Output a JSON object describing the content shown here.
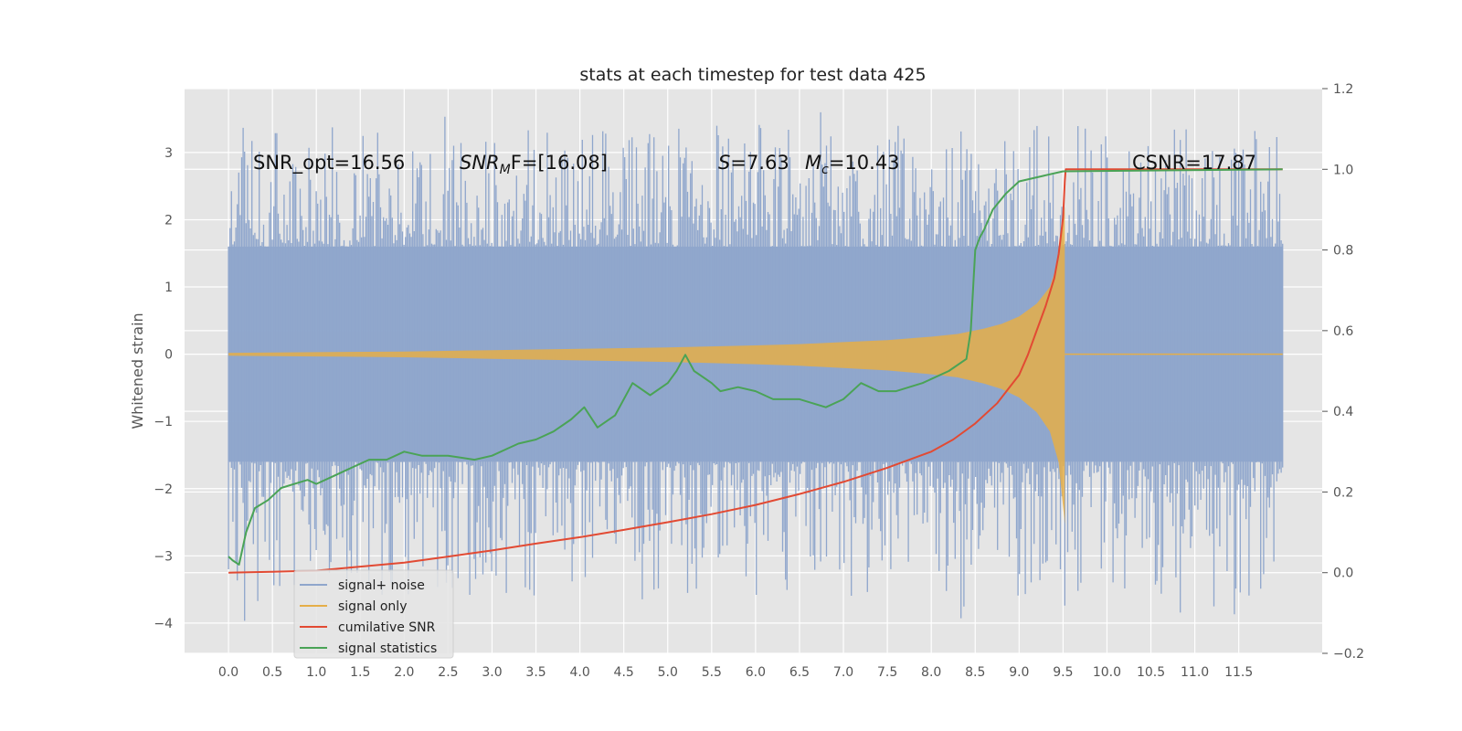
{
  "chart_data": {
    "type": "line",
    "title": "stats at each timestep for test data 425",
    "ylabel": "Whitened strain",
    "y2label": "",
    "xlim": [
      -0.5,
      12.45
    ],
    "ylim": [
      -4.45,
      3.95
    ],
    "y2lim": [
      -0.2,
      1.2
    ],
    "x_ticks": [
      0.0,
      0.5,
      1.0,
      1.5,
      2.0,
      2.5,
      3.0,
      3.5,
      4.0,
      4.5,
      5.0,
      5.5,
      6.0,
      6.5,
      7.0,
      7.5,
      8.0,
      8.5,
      9.0,
      9.5,
      10.0,
      10.5,
      11.0,
      11.5
    ],
    "x_tick_labels": [
      "0.0",
      "0.5",
      "1.0",
      "1.5",
      "2.0",
      "2.5",
      "3.0",
      "3.5",
      "4.0",
      "4.5",
      "5.0",
      "5.5",
      "6.0",
      "6.5",
      "7.0",
      "7.5",
      "8.0",
      "8.5",
      "9.0",
      "9.5",
      "10.0",
      "10.5",
      "11.0",
      "11.5"
    ],
    "y_ticks": [
      -4,
      -3,
      -2,
      -1,
      0,
      1,
      2,
      3
    ],
    "y_tick_labels": [
      "−4",
      "−3",
      "−2",
      "−1",
      "0",
      "1",
      "2",
      "3"
    ],
    "y2_ticks": [
      -0.2,
      0.0,
      0.2,
      0.4,
      0.6,
      0.8,
      1.0,
      1.2
    ],
    "y2_tick_labels": [
      "−0.2",
      "0.0",
      "0.2",
      "0.4",
      "0.6",
      "0.8",
      "1.0",
      "1.2"
    ],
    "grid": true,
    "legend_position": "lower-left",
    "annotations": {
      "snr_opt": "SNR_opt=16.56",
      "snr_mf_main": "SNR",
      "snr_mf_sub": "M",
      "snr_mf_rest": "F=[16.08]",
      "s_var": "S",
      "s_val": "=7.63",
      "mc_var": "M",
      "mc_sub": "c",
      "mc_val": "=10.43",
      "csnr": "CSNR=17.87"
    },
    "series": [
      {
        "name": "signal+ noise",
        "axis": "left",
        "color": "#8fa6cc",
        "kind": "noise-band",
        "x_range": [
          0.0,
          12.0
        ],
        "typical_range": [
          -1.6,
          1.6
        ],
        "extreme_range": [
          -4.1,
          3.65
        ]
      },
      {
        "name": "signal only",
        "axis": "left",
        "color": "#e5ae48",
        "kind": "chirp-envelope",
        "x": [
          0.0,
          1.0,
          2.0,
          3.0,
          4.0,
          5.0,
          6.0,
          6.5,
          7.0,
          7.5,
          8.0,
          8.3,
          8.6,
          8.8,
          9.0,
          9.2,
          9.35,
          9.45,
          9.52
        ],
        "amplitude": [
          0.02,
          0.03,
          0.04,
          0.06,
          0.08,
          0.1,
          0.13,
          0.15,
          0.18,
          0.21,
          0.26,
          0.3,
          0.38,
          0.45,
          0.56,
          0.75,
          1.0,
          1.4,
          2.2
        ]
      },
      {
        "name": "cumilative SNR",
        "axis": "right",
        "color": "#e24a33",
        "x": [
          0.0,
          0.5,
          1.0,
          1.5,
          2.0,
          2.5,
          3.0,
          3.5,
          4.0,
          4.5,
          5.0,
          5.5,
          6.0,
          6.5,
          7.0,
          7.5,
          8.0,
          8.25,
          8.5,
          8.75,
          9.0,
          9.1,
          9.2,
          9.3,
          9.4,
          9.45,
          9.5,
          9.52,
          9.53,
          12.0
        ],
        "values": [
          0.0,
          0.002,
          0.005,
          0.015,
          0.025,
          0.04,
          0.055,
          0.072,
          0.088,
          0.106,
          0.125,
          0.145,
          0.168,
          0.195,
          0.225,
          0.26,
          0.3,
          0.33,
          0.37,
          0.42,
          0.49,
          0.54,
          0.6,
          0.66,
          0.73,
          0.79,
          0.88,
          0.97,
          1.0,
          1.0
        ]
      },
      {
        "name": "signal statistics",
        "axis": "right",
        "color": "#4aa356",
        "x": [
          0.0,
          0.05,
          0.12,
          0.2,
          0.3,
          0.45,
          0.6,
          0.75,
          0.9,
          1.0,
          1.2,
          1.4,
          1.6,
          1.8,
          2.0,
          2.2,
          2.5,
          2.8,
          3.0,
          3.2,
          3.3,
          3.5,
          3.7,
          3.9,
          4.05,
          4.2,
          4.4,
          4.6,
          4.8,
          5.0,
          5.1,
          5.2,
          5.3,
          5.5,
          5.6,
          5.8,
          6.0,
          6.2,
          6.5,
          6.8,
          7.0,
          7.2,
          7.4,
          7.6,
          7.9,
          8.2,
          8.4,
          8.45,
          8.5,
          8.55,
          8.6,
          8.7,
          8.85,
          9.0,
          9.2,
          9.5,
          12.0
        ],
        "values": [
          0.04,
          0.03,
          0.02,
          0.1,
          0.16,
          0.18,
          0.21,
          0.22,
          0.23,
          0.22,
          0.24,
          0.26,
          0.28,
          0.28,
          0.3,
          0.29,
          0.29,
          0.28,
          0.29,
          0.31,
          0.32,
          0.33,
          0.35,
          0.38,
          0.41,
          0.36,
          0.39,
          0.47,
          0.44,
          0.47,
          0.5,
          0.54,
          0.5,
          0.47,
          0.45,
          0.46,
          0.45,
          0.43,
          0.43,
          0.41,
          0.43,
          0.47,
          0.45,
          0.45,
          0.47,
          0.5,
          0.53,
          0.6,
          0.8,
          0.83,
          0.85,
          0.9,
          0.94,
          0.97,
          0.98,
          0.995,
          1.0
        ]
      }
    ]
  }
}
